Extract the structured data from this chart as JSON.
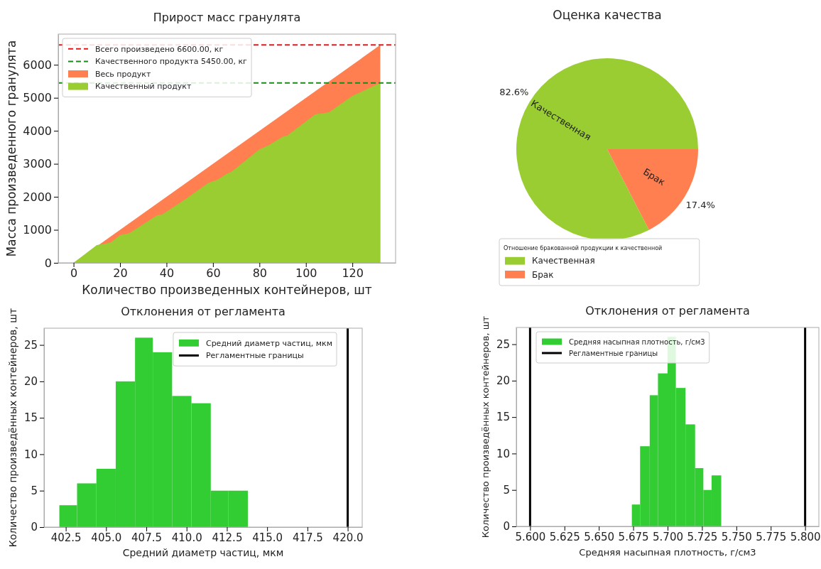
{
  "chart_data": [
    {
      "type": "area",
      "title": "Прирост масс гранулята",
      "xlabel": "Количество произведенных контейнеров, шт",
      "ylabel": "Масса произведенного гранулята",
      "xlim": [
        -6.6,
        138.6
      ],
      "ylim": [
        0,
        6930
      ],
      "xticks": [
        0,
        20,
        40,
        60,
        80,
        100,
        120
      ],
      "yticks": [
        0,
        1000,
        2000,
        3000,
        4000,
        5000,
        6000
      ],
      "legend": "top left",
      "ref_lines": [
        {
          "axis": "y",
          "value": 6600,
          "label": "Всего произведено 6600.00, кг",
          "color": "#e31a1c",
          "line_style": "dashed"
        },
        {
          "axis": "y",
          "value": 5450,
          "label": "Качественного продукта 5450.00, кг",
          "color": "#1a8a1a",
          "line_style": "dashed"
        }
      ],
      "series": [
        {
          "name": "Весь продукт",
          "color": "#ff7f50",
          "x": [
            0,
            132
          ],
          "values": [
            0,
            6600
          ]
        },
        {
          "name": "Качественный продукт",
          "color": "#9acd32",
          "x": [
            0,
            10,
            13,
            16,
            20,
            24,
            36,
            38,
            48,
            58,
            62,
            66,
            68,
            80,
            84,
            90,
            92,
            104,
            110,
            120,
            126,
            132
          ],
          "values": [
            0,
            540,
            570,
            620,
            840,
            900,
            1440,
            1460,
            1920,
            2420,
            2520,
            2700,
            2760,
            3440,
            3560,
            3820,
            3860,
            4500,
            4560,
            5060,
            5250,
            5450
          ]
        }
      ]
    },
    {
      "type": "pie",
      "title": "Оценка качества",
      "categories": [
        "Качественная",
        "Брак"
      ],
      "values": [
        82.6,
        17.4
      ],
      "colors": [
        "#9acd32",
        "#ff7f50"
      ],
      "value_labels": [
        "82.6%",
        "17.4%"
      ],
      "legend": "bottom left",
      "legend_title": "Отношение бракованной продукции к качественной"
    },
    {
      "type": "histogram",
      "title": "Отклонения от регламента",
      "xlabel": "Средний диаметр частиц, мкм",
      "ylabel": "Количество произведённых контейнеров, шт",
      "xlim": [
        401.15,
        420.9
      ],
      "ylim": [
        0,
        27.3
      ],
      "xticks": [
        {
          "value": 402.5,
          "label": "402.5"
        },
        {
          "value": 405,
          "label": "405.0"
        },
        {
          "value": 407.5,
          "label": "407.5"
        },
        {
          "value": 410,
          "label": "410.0"
        },
        {
          "value": 412.5,
          "label": "412.5"
        },
        {
          "value": 415,
          "label": "415.0"
        },
        {
          "value": 417.5,
          "label": "417.5"
        },
        {
          "value": 420,
          "label": "420.0"
        }
      ],
      "yticks": [
        0,
        5,
        10,
        15,
        20,
        25
      ],
      "legend": "top right",
      "bins": [
        402.1,
        403.2,
        404.4,
        405.6,
        406.8,
        407.9,
        409.1,
        410.3,
        411.5,
        412.6,
        413.8
      ],
      "series": [
        {
          "type": "histogram",
          "name": "Средний диаметр частиц, мкм",
          "color": "#32cd32",
          "values": [
            3,
            6,
            8,
            20,
            26,
            24,
            18,
            17,
            5,
            5
          ]
        }
      ],
      "ref_lines": [
        {
          "axis": "x",
          "value": 420,
          "label": "Регламентные границы",
          "color": "#000000"
        }
      ]
    },
    {
      "type": "histogram",
      "title": "Отклонения от регламента",
      "xlabel": "Средняя насыпная плотность, г/см3",
      "ylabel": "Количество произведённых контейнеров, шт",
      "xlim": [
        5.59,
        5.81
      ],
      "ylim": [
        0,
        27.3
      ],
      "xticks": [
        {
          "value": 5.6,
          "label": "5.600"
        },
        {
          "value": 5.625,
          "label": "5.625"
        },
        {
          "value": 5.65,
          "label": "5.650"
        },
        {
          "value": 5.675,
          "label": "5.675"
        },
        {
          "value": 5.7,
          "label": "5.700"
        },
        {
          "value": 5.725,
          "label": "5.725"
        },
        {
          "value": 5.75,
          "label": "5.750"
        },
        {
          "value": 5.775,
          "label": "5.775"
        },
        {
          "value": 5.8,
          "label": "5.800"
        }
      ],
      "yticks": [
        0,
        5,
        10,
        15,
        20,
        25
      ],
      "legend": "top left",
      "bins": [
        5.674,
        5.68,
        5.687,
        5.693,
        5.7,
        5.706,
        5.713,
        5.72,
        5.726,
        5.732,
        5.739
      ],
      "series": [
        {
          "type": "histogram",
          "name": "Средняя насыпная плотность, г/см3",
          "color": "#32cd32",
          "values": [
            3,
            11,
            18,
            21,
            26,
            19,
            14,
            8,
            5,
            7
          ]
        }
      ],
      "ref_lines": [
        {
          "axis": "x",
          "value": 5.6,
          "label": "Регламентные границы",
          "color": "#000000"
        },
        {
          "axis": "x",
          "value": 5.8,
          "color": "#000000"
        }
      ]
    }
  ]
}
